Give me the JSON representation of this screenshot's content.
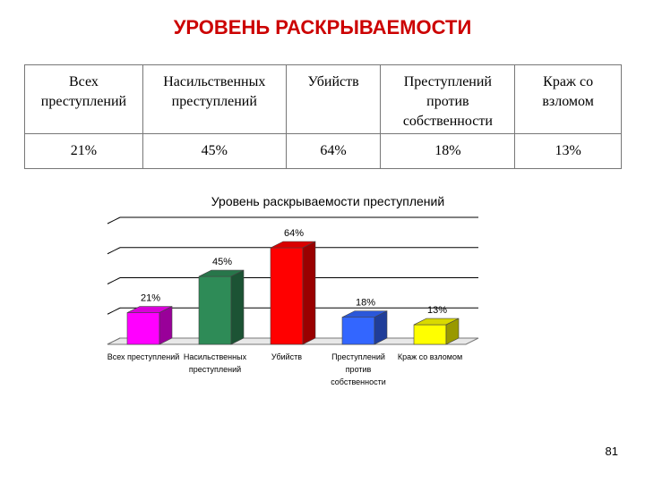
{
  "page_title": "УРОВЕНЬ РАСКРЫВАЕМОСТИ",
  "table": {
    "headers": [
      "Всех преступлений",
      "Насильственных преступлений",
      "Убийств",
      "Преступлений против собственности",
      "Краж со взломом"
    ],
    "values": [
      "21%",
      "45%",
      "64%",
      "18%",
      "13%"
    ]
  },
  "chart_data": {
    "type": "bar",
    "title": "Уровень раскрываемости преступлений",
    "categories": [
      "Всех преступлений",
      "Насильственных преступлений",
      "Убийств",
      "Преступлений против собственности",
      "Краж со взломом"
    ],
    "category_lines": [
      [
        "Всех преступлений"
      ],
      [
        "Насильственных",
        "преступлений"
      ],
      [
        "Убийств"
      ],
      [
        "Преступлений",
        "против",
        "собственности"
      ],
      [
        "Краж со взломом"
      ]
    ],
    "values": [
      21,
      45,
      64,
      18,
      13
    ],
    "data_labels": [
      "21%",
      "45%",
      "64%",
      "18%",
      "13%"
    ],
    "colors": [
      "#ff00ff",
      "#2e8b57",
      "#ff0000",
      "#3366ff",
      "#ffff00"
    ],
    "ylim": [
      0,
      80
    ],
    "grid": true,
    "xlabel": "",
    "ylabel": ""
  },
  "page_number": "81"
}
